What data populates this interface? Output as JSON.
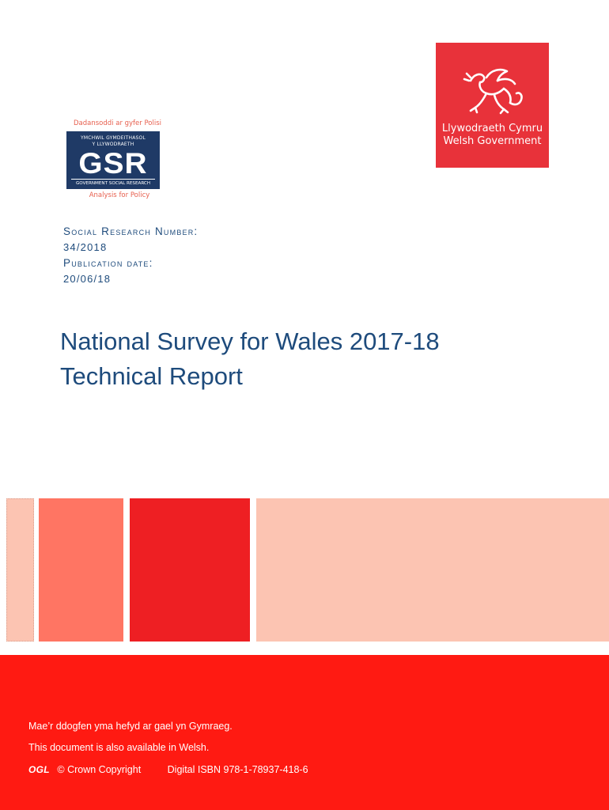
{
  "gsr_logo": {
    "top_caption": "Dadansoddi ar gyfer Polisi",
    "line1": "YMCHWIL GYMDEITHASOL",
    "line2": "Y LLYWODRAETH",
    "mark": "GSR",
    "line3": "GOVERNMENT SOCIAL RESEARCH",
    "bottom_caption": "Analysis for Policy"
  },
  "wg_logo": {
    "line1": "Llywodraeth Cymru",
    "line2": "Welsh Government"
  },
  "meta": {
    "research_number_label": "Social Research Number:",
    "research_number": "34/2018",
    "publication_date_label": "Publication date:",
    "publication_date": "20/06/18"
  },
  "title": {
    "line1": "National Survey for Wales 2017-18",
    "line2": "Technical Report"
  },
  "colors": {
    "navy": "#1e4b7c",
    "red": "#ee1f23",
    "footer_red": "#ff1a12",
    "salmon": "#ff7563",
    "peach": "#fcc4b2"
  },
  "footer": {
    "welsh_note": "Mae’r ddogfen yma hefyd ar gael yn Gymraeg.",
    "english_note": "This document is also available in Welsh.",
    "ogl": "OGL",
    "copyright": "© Crown Copyright",
    "isbn": "Digital ISBN 978-1-78937-418-6"
  }
}
